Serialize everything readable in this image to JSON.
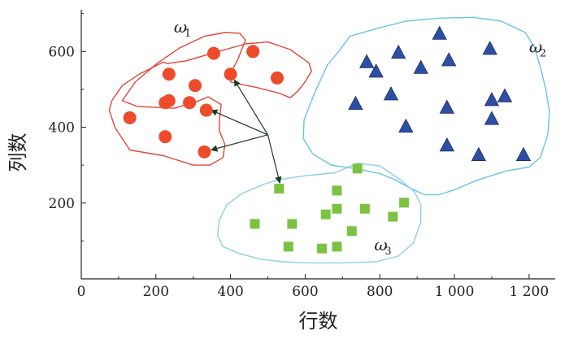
{
  "chart_data": {
    "type": "scatter",
    "xlabel": "行数",
    "ylabel": "列数",
    "xlim": [
      0,
      1270
    ],
    "ylim": [
      0,
      710
    ],
    "xticks": [
      {
        "value": 0,
        "label": "0"
      },
      {
        "value": 200,
        "label": "200"
      },
      {
        "value": 400,
        "label": "400"
      },
      {
        "value": 600,
        "label": "600"
      },
      {
        "value": 800,
        "label": "800"
      },
      {
        "value": 1000,
        "label": "1 000"
      },
      {
        "value": 1200,
        "label": "1 200"
      }
    ],
    "yticks": [
      {
        "value": 200,
        "label": "200"
      },
      {
        "value": 400,
        "label": "400"
      },
      {
        "value": 600,
        "label": "600"
      }
    ],
    "grid": false,
    "series": [
      {
        "name": "ω1",
        "label_main": "ω",
        "label_sub": "1",
        "label_pos": {
          "x": 248,
          "y": 650
        },
        "marker": "circle",
        "color": "#ee4a2c",
        "outline_color": "#e0473c",
        "x": [
          130,
          225,
          225,
          235,
          235,
          290,
          305,
          330,
          335,
          355,
          400,
          460,
          525
        ],
        "y": [
          425,
          465,
          375,
          540,
          470,
          465,
          510,
          335,
          445,
          595,
          540,
          600,
          530
        ],
        "outline": [
          [
            110,
            470
          ],
          [
            145,
            520
          ],
          [
            205,
            570
          ],
          [
            265,
            610
          ],
          [
            330,
            640
          ],
          [
            385,
            650
          ],
          [
            425,
            648
          ],
          [
            440,
            630
          ],
          [
            420,
            580
          ],
          [
            400,
            542
          ],
          [
            400,
            520
          ],
          [
            420,
            515
          ],
          [
            470,
            505
          ],
          [
            530,
            490
          ],
          [
            560,
            478
          ],
          [
            580,
            495
          ],
          [
            600,
            520
          ],
          [
            617,
            548
          ],
          [
            610,
            570
          ],
          [
            560,
            605
          ],
          [
            500,
            625
          ],
          [
            440,
            620
          ],
          [
            350,
            595
          ],
          [
            280,
            575
          ],
          [
            230,
            568
          ],
          [
            220,
            572
          ],
          [
            155,
            540
          ],
          [
            110,
            510
          ],
          [
            82,
            470
          ],
          [
            75,
            445
          ],
          [
            90,
            400
          ],
          [
            130,
            340
          ],
          [
            220,
            325
          ],
          [
            300,
            300
          ],
          [
            345,
            300
          ],
          [
            380,
            320
          ],
          [
            385,
            355
          ],
          [
            370,
            390
          ],
          [
            370,
            420
          ],
          [
            375,
            460
          ],
          [
            340,
            480
          ],
          [
            315,
            470
          ],
          [
            250,
            450
          ],
          [
            150,
            455
          ],
          [
            110,
            470
          ]
        ]
      },
      {
        "name": "ω2",
        "label_main": "ω",
        "label_sub": "2",
        "label_pos": {
          "x": 1200,
          "y": 597
        },
        "marker": "triangle",
        "color": "#2d4fa3",
        "outline_color": "#6ac3e8",
        "x": [
          765,
          790,
          850,
          910,
          960,
          985,
          1095,
          735,
          830,
          870,
          980,
          1100,
          1135,
          1100,
          980,
          1065,
          1185
        ],
        "y": [
          570,
          545,
          595,
          555,
          645,
          575,
          605,
          460,
          485,
          400,
          450,
          470,
          480,
          420,
          350,
          325,
          325
        ],
        "outline": [
          [
            690,
            600
          ],
          [
            720,
            640
          ],
          [
            790,
            660
          ],
          [
            870,
            680
          ],
          [
            960,
            688
          ],
          [
            1050,
            690
          ],
          [
            1125,
            680
          ],
          [
            1190,
            650
          ],
          [
            1215,
            610
          ],
          [
            1230,
            560
          ],
          [
            1245,
            500
          ],
          [
            1255,
            440
          ],
          [
            1250,
            380
          ],
          [
            1230,
            320
          ],
          [
            1200,
            295
          ],
          [
            1140,
            285
          ],
          [
            1060,
            260
          ],
          [
            1000,
            235
          ],
          [
            960,
            222
          ],
          [
            920,
            222
          ],
          [
            880,
            240
          ],
          [
            840,
            262
          ],
          [
            800,
            278
          ],
          [
            740,
            290
          ],
          [
            670,
            300
          ],
          [
            620,
            330
          ],
          [
            595,
            370
          ],
          [
            597,
            420
          ],
          [
            625,
            490
          ],
          [
            660,
            565
          ],
          [
            690,
            600
          ]
        ]
      },
      {
        "name": "ω3",
        "label_main": "ω",
        "label_sub": "3",
        "label_pos": {
          "x": 785,
          "y": 75
        },
        "marker": "square",
        "color": "#7cc242",
        "outline_color": "#8ccfe6",
        "x": [
          530,
          740,
          685,
          865,
          835,
          655,
          685,
          760,
          465,
          565,
          725,
          555,
          645,
          685
        ],
        "y": [
          238,
          291,
          233,
          201,
          164,
          170,
          185,
          185,
          145,
          145,
          126,
          85,
          80,
          85
        ],
        "outline": [
          [
            490,
            250
          ],
          [
            530,
            262
          ],
          [
            600,
            272
          ],
          [
            680,
            280
          ],
          [
            740,
            305
          ],
          [
            800,
            298
          ],
          [
            850,
            265
          ],
          [
            893,
            230
          ],
          [
            910,
            195
          ],
          [
            910,
            150
          ],
          [
            890,
            95
          ],
          [
            850,
            60
          ],
          [
            790,
            45
          ],
          [
            700,
            42
          ],
          [
            610,
            42
          ],
          [
            540,
            45
          ],
          [
            480,
            52
          ],
          [
            420,
            68
          ],
          [
            380,
            85
          ],
          [
            365,
            115
          ],
          [
            370,
            155
          ],
          [
            390,
            195
          ],
          [
            430,
            225
          ],
          [
            490,
            250
          ]
        ]
      }
    ],
    "annotation_arrows": {
      "color": "#1f3a1f",
      "origin": {
        "x": 500,
        "y": 380
      },
      "targets": [
        {
          "x": 410,
          "y": 525
        },
        {
          "x": 348,
          "y": 445
        },
        {
          "x": 348,
          "y": 340
        },
        {
          "x": 532,
          "y": 253
        }
      ]
    }
  }
}
